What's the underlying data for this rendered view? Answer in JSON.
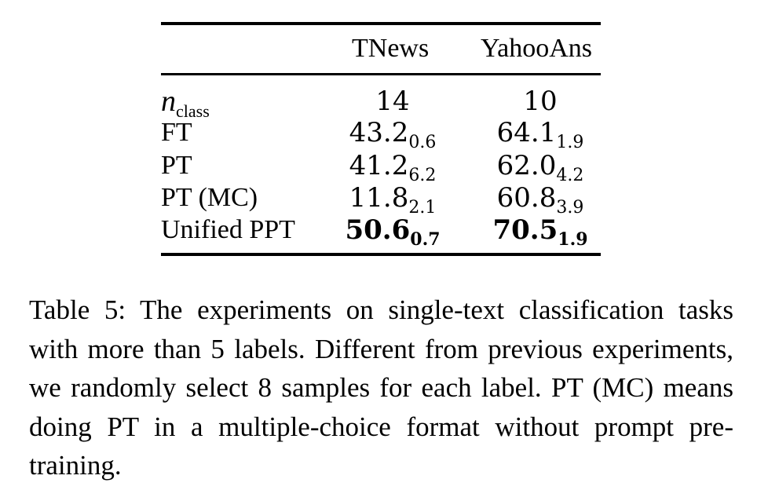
{
  "table": {
    "columns": [
      "TNews",
      "YahooAns"
    ],
    "n_class_label": {
      "symbol": "n",
      "subscript": "class"
    },
    "rows": [
      {
        "label": "",
        "c1": "14",
        "c1_sub": "",
        "c2": "10",
        "c2_sub": ""
      },
      {
        "label": "FT",
        "c1": "43.2",
        "c1_sub": "0.6",
        "c2": "64.1",
        "c2_sub": "1.9"
      },
      {
        "label": "PT",
        "c1": "41.2",
        "c1_sub": "6.2",
        "c2": "62.0",
        "c2_sub": "4.2"
      },
      {
        "label": "PT (MC)",
        "c1": "11.8",
        "c1_sub": "2.1",
        "c2": "60.8",
        "c2_sub": "3.9"
      },
      {
        "label": "Unified PPT",
        "c1": "50.6",
        "c1_sub": "0.7",
        "c2": "70.5",
        "c2_sub": "1.9"
      }
    ]
  },
  "caption": "Table 5: The experiments on single-text classification tasks with more than 5 labels. Different from previous experiments, we randomly select 8 samples for each label. PT (MC) means doing PT in a multiple-choice format without prompt pre-training."
}
